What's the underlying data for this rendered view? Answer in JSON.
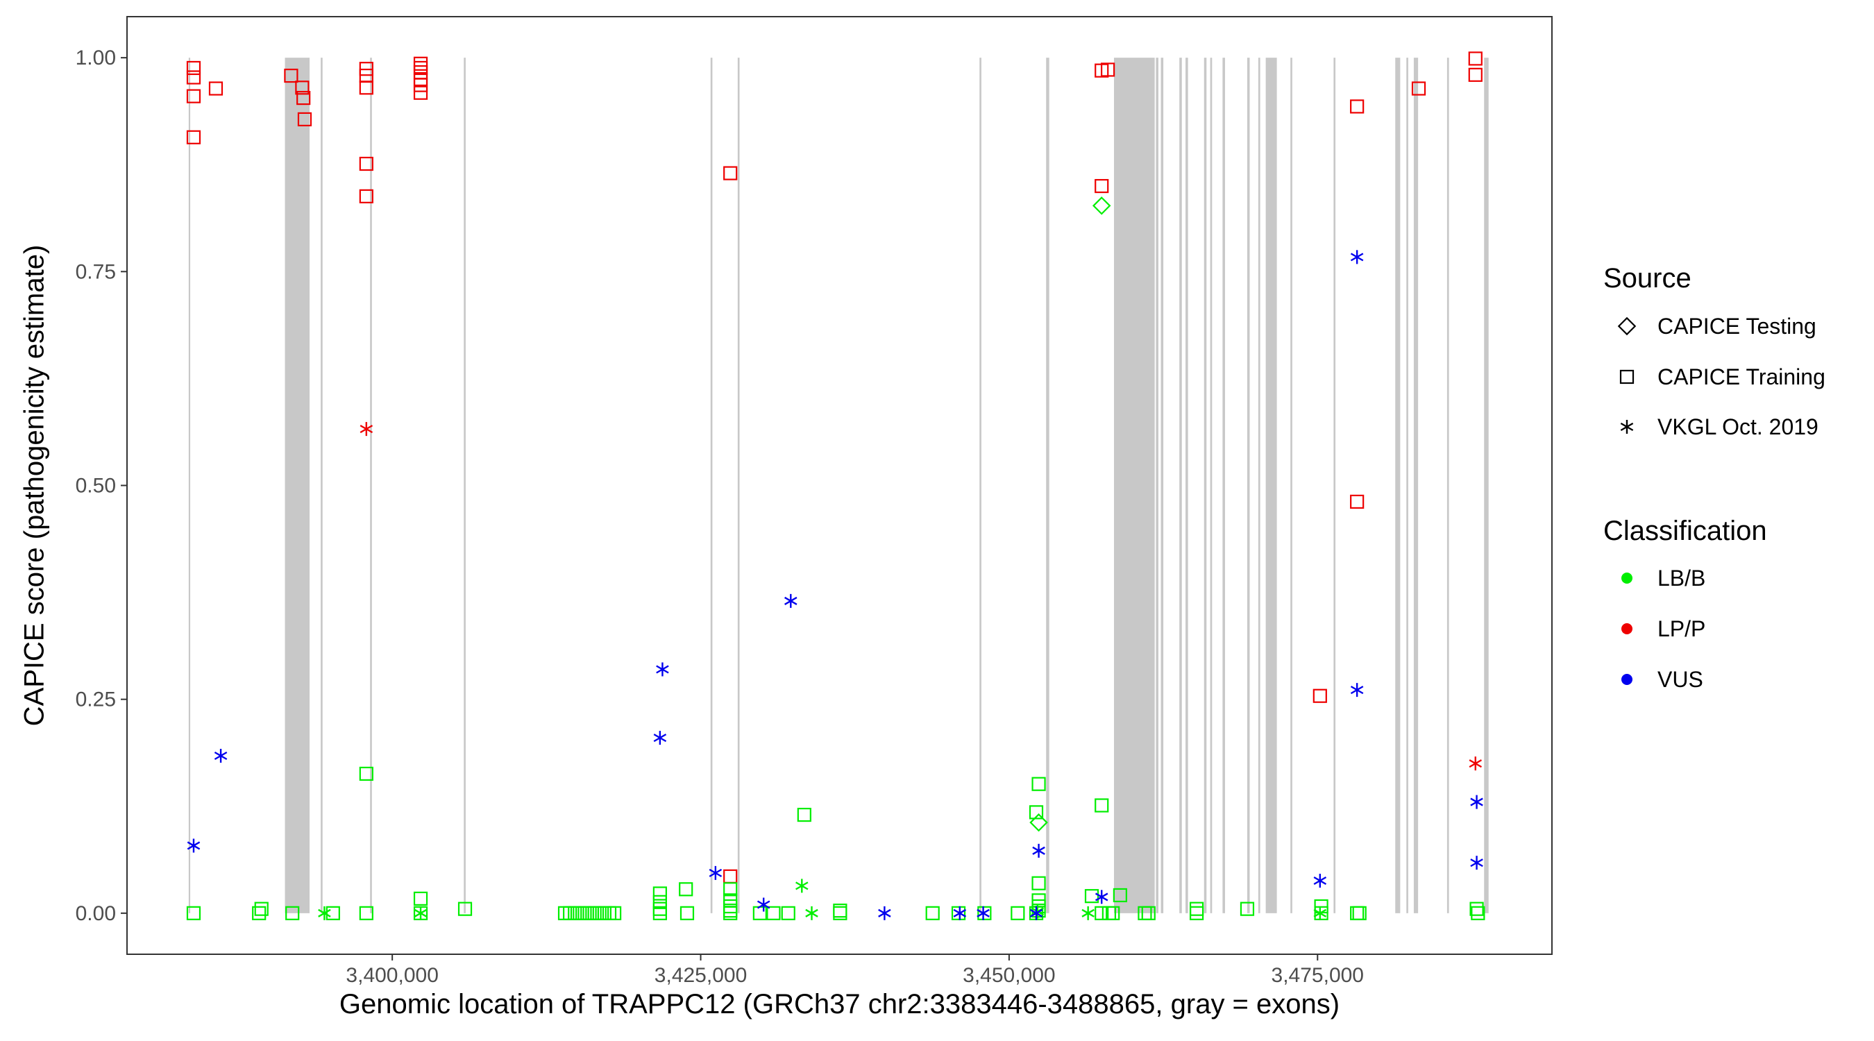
{
  "chart_data": {
    "type": "scatter",
    "xlabel": "Genomic location of TRAPPC12 (GRCh37 chr2:3383446-3488865, gray = exons)",
    "ylabel": "CAPICE score (pathogenicity estimate)",
    "xlim": [
      3378500,
      3494000
    ],
    "ylim": [
      -0.048,
      1.048
    ],
    "x_ticks": [
      3400000,
      3425000,
      3450000,
      3475000
    ],
    "x_tick_labels": [
      "3,400,000",
      "3,425,000",
      "3,450,000",
      "3,475,000"
    ],
    "y_ticks": [
      0,
      0.25,
      0.5,
      0.75,
      1.0
    ],
    "y_tick_labels": [
      "0.00",
      "0.25",
      "0.50",
      "0.75",
      "1.00"
    ],
    "grid": false,
    "legend": {
      "placement": "right",
      "source_title": "Source",
      "source_items": [
        {
          "label": "CAPICE Testing",
          "shape": "diamond"
        },
        {
          "label": "CAPICE Training",
          "shape": "square"
        },
        {
          "label": "VKGL Oct. 2019",
          "shape": "asterisk"
        }
      ],
      "class_title": "Classification",
      "class_items": [
        {
          "label": "LB/B",
          "color": "#00ee00"
        },
        {
          "label": "LP/P",
          "color": "#ee0000"
        },
        {
          "label": "VUS",
          "color": "#0000ee"
        }
      ]
    },
    "exon_color": "#c8c8c8",
    "exons": [
      [
        3383500,
        3383600
      ],
      [
        3391300,
        3393300
      ],
      [
        3394200,
        3394350
      ],
      [
        3398200,
        3398350
      ],
      [
        3405800,
        3405950
      ],
      [
        3425800,
        3425950
      ],
      [
        3428000,
        3428150
      ],
      [
        3447600,
        3447750
      ],
      [
        3453000,
        3453250
      ],
      [
        3458500,
        3461800
      ],
      [
        3461900,
        3462100
      ],
      [
        3462300,
        3462500
      ],
      [
        3463800,
        3464000
      ],
      [
        3464300,
        3464500
      ],
      [
        3465800,
        3466000
      ],
      [
        3466300,
        3466450
      ],
      [
        3467300,
        3467500
      ],
      [
        3469300,
        3469500
      ],
      [
        3470200,
        3470350
      ],
      [
        3470800,
        3471700
      ],
      [
        3472800,
        3472950
      ],
      [
        3476300,
        3476450
      ],
      [
        3481300,
        3481700
      ],
      [
        3482200,
        3482350
      ],
      [
        3482800,
        3483150
      ],
      [
        3485500,
        3485650
      ],
      [
        3488500,
        3488865
      ]
    ],
    "series": [
      {
        "source": "CAPICE Training",
        "classification": "LP/P",
        "shape": "square",
        "color": "#ee0000",
        "x": [
          3383900,
          3383900,
          3383900,
          3383900,
          3385700,
          3391800,
          3392700,
          3392800,
          3392900,
          3397900,
          3397900,
          3397900,
          3397900,
          3397900,
          3402300,
          3402300,
          3402300,
          3402300,
          3402300,
          3402300,
          3427400,
          3427400,
          3457500,
          3457500,
          3458000,
          3475200,
          3478200,
          3478200,
          3483200,
          3487800,
          3487800
        ],
        "y": [
          0.988,
          0.977,
          0.955,
          0.907,
          0.964,
          0.979,
          0.965,
          0.953,
          0.928,
          0.987,
          0.979,
          0.965,
          0.876,
          0.838,
          0.993,
          0.988,
          0.983,
          0.975,
          0.968,
          0.959,
          0.865,
          0.043,
          0.985,
          0.85,
          0.986,
          0.254,
          0.943,
          0.481,
          0.964,
          0.999,
          0.98
        ]
      },
      {
        "source": "VKGL Oct. 2019",
        "classification": "LP/P",
        "shape": "asterisk",
        "color": "#ee0000",
        "x": [
          3397900,
          3487800
        ],
        "y": [
          0.566,
          0.175
        ]
      },
      {
        "source": "CAPICE Testing",
        "classification": "LB/B",
        "shape": "diamond",
        "color": "#00ee00",
        "x": [
          3457500,
          3452400
        ],
        "y": [
          0.827,
          0.106
        ]
      },
      {
        "source": "CAPICE Training",
        "classification": "LB/B",
        "shape": "square",
        "color": "#00ee00",
        "x": [
          3383900,
          3389200,
          3389400,
          3391900,
          3395200,
          3397900,
          3397900,
          3402300,
          3402300,
          3405900,
          3414000,
          3414400,
          3414800,
          3415200,
          3415600,
          3416000,
          3416400,
          3416800,
          3417200,
          3417600,
          3418000,
          3421700,
          3421700,
          3421700,
          3421700,
          3423800,
          3423900,
          3427400,
          3427400,
          3427400,
          3427400,
          3427400,
          3429800,
          3430900,
          3432100,
          3433400,
          3436300,
          3436300,
          3443800,
          3445900,
          3448000,
          3450700,
          3452200,
          3452200,
          3452400,
          3452400,
          3452400,
          3452400,
          3452400,
          3456700,
          3457500,
          3457500,
          3458100,
          3458400,
          3459000,
          3461000,
          3461300,
          3465200,
          3465200,
          3469300,
          3475300,
          3475300,
          3478200,
          3478400,
          3487900,
          3488000
        ],
        "y": [
          0.0,
          0.0,
          0.005,
          0.0,
          0.0,
          0.163,
          0.0,
          0.017,
          0.0,
          0.005,
          0.0,
          0.0,
          0.0,
          0.0,
          0.0,
          0.0,
          0.0,
          0.0,
          0.0,
          0.0,
          0.0,
          0.023,
          0.013,
          0.005,
          0.0,
          0.028,
          0.0,
          0.028,
          0.015,
          0.008,
          0.003,
          0.0,
          0.0,
          0.0,
          0.0,
          0.115,
          0.003,
          0.0,
          0.0,
          0.0,
          0.0,
          0.0,
          0.118,
          0.0,
          0.151,
          0.035,
          0.015,
          0.008,
          0.003,
          0.02,
          0.126,
          0.0,
          0.0,
          0.0,
          0.021,
          0.0,
          0.0,
          0.005,
          0.0,
          0.005,
          0.008,
          0.0,
          0.0,
          0.0,
          0.005,
          0.0
        ]
      },
      {
        "source": "VKGL Oct. 2019",
        "classification": "LB/B",
        "shape": "asterisk",
        "color": "#00ee00",
        "x": [
          3394500,
          3402300,
          3433200,
          3434000,
          3452300,
          3456400,
          3475200
        ],
        "y": [
          0.0,
          0.0,
          0.032,
          0.0,
          0.002,
          0.0,
          0.0
        ]
      },
      {
        "source": "VKGL Oct. 2019",
        "classification": "VUS",
        "shape": "asterisk",
        "color": "#0000ee",
        "x": [
          3383900,
          3386100,
          3421700,
          3421900,
          3426200,
          3430100,
          3432300,
          3439900,
          3446000,
          3447900,
          3452200,
          3452400,
          3457500,
          3475200,
          3478200,
          3478200,
          3487900,
          3487900
        ],
        "y": [
          0.079,
          0.184,
          0.205,
          0.285,
          0.047,
          0.01,
          0.365,
          0.0,
          0.0,
          0.0,
          0.0,
          0.073,
          0.019,
          0.038,
          0.767,
          0.261,
          0.13,
          0.059
        ]
      }
    ]
  }
}
